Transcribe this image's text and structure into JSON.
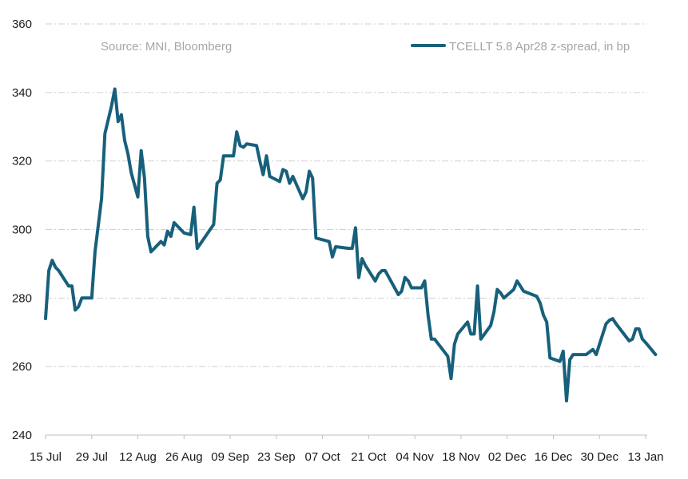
{
  "chart_data": {
    "type": "line",
    "title": "",
    "xlabel": "",
    "ylabel": "",
    "annotation": "Source: MNI, Bloomberg",
    "legend_position": "top-right",
    "ylim": [
      240,
      360
    ],
    "yticks": [
      240,
      260,
      280,
      300,
      320,
      340,
      360
    ],
    "grid": true,
    "x_range_days": [
      0,
      182
    ],
    "xticks": [
      {
        "day": 0,
        "label": "15 Jul"
      },
      {
        "day": 14,
        "label": "29 Jul"
      },
      {
        "day": 28,
        "label": "12 Aug"
      },
      {
        "day": 42,
        "label": "26 Aug"
      },
      {
        "day": 56,
        "label": "09 Sep"
      },
      {
        "day": 70,
        "label": "23 Sep"
      },
      {
        "day": 84,
        "label": "07 Oct"
      },
      {
        "day": 98,
        "label": "21 Oct"
      },
      {
        "day": 112,
        "label": "04 Nov"
      },
      {
        "day": 126,
        "label": "18 Nov"
      },
      {
        "day": 140,
        "label": "02 Dec"
      },
      {
        "day": 154,
        "label": "16 Dec"
      },
      {
        "day": 168,
        "label": "30 Dec"
      },
      {
        "day": 182,
        "label": "13 Jan"
      }
    ],
    "series": [
      {
        "name": "TCELLT 5.8 Apr28 z-spread, in bp",
        "color": "#17607c",
        "points": [
          [
            0,
            274
          ],
          [
            1,
            288
          ],
          [
            2,
            291
          ],
          [
            3,
            289
          ],
          [
            4,
            288
          ],
          [
            7,
            283.5
          ],
          [
            8,
            283.5
          ],
          [
            9,
            276.5
          ],
          [
            10,
            277.5
          ],
          [
            11,
            280
          ],
          [
            14,
            280
          ],
          [
            15,
            293.5
          ],
          [
            17,
            309
          ],
          [
            18,
            328
          ],
          [
            20,
            336
          ],
          [
            21,
            341
          ],
          [
            22,
            331.5
          ],
          [
            23,
            333.5
          ],
          [
            24,
            326
          ],
          [
            25,
            322
          ],
          [
            26,
            316.5
          ],
          [
            28,
            309.5
          ],
          [
            29,
            323
          ],
          [
            30,
            315
          ],
          [
            31,
            298
          ],
          [
            32,
            293.5
          ],
          [
            35,
            296.5
          ],
          [
            36,
            295.5
          ],
          [
            37,
            299.5
          ],
          [
            38,
            298
          ],
          [
            39,
            302
          ],
          [
            42,
            299
          ],
          [
            44,
            298.5
          ],
          [
            45,
            306.5
          ],
          [
            46,
            294.5
          ],
          [
            51,
            301.5
          ],
          [
            52,
            313.5
          ],
          [
            53,
            314.5
          ],
          [
            54,
            321.5
          ],
          [
            57,
            321.5
          ],
          [
            58,
            328.5
          ],
          [
            59,
            324.5
          ],
          [
            60,
            324
          ],
          [
            61,
            325
          ],
          [
            64,
            324.5
          ],
          [
            65,
            320
          ],
          [
            66,
            316
          ],
          [
            67,
            321.5
          ],
          [
            68,
            315.5
          ],
          [
            71,
            314
          ],
          [
            72,
            317.5
          ],
          [
            73,
            317
          ],
          [
            74,
            313.5
          ],
          [
            75,
            315.5
          ],
          [
            78,
            309
          ],
          [
            79,
            311
          ],
          [
            80,
            317
          ],
          [
            81,
            315
          ],
          [
            82,
            297.5
          ],
          [
            86,
            296.5
          ],
          [
            87,
            292
          ],
          [
            88,
            295
          ],
          [
            92,
            294.5
          ],
          [
            93,
            294.5
          ],
          [
            94,
            300.5
          ],
          [
            95,
            286
          ],
          [
            96,
            291.5
          ],
          [
            97,
            289.5
          ],
          [
            100,
            285
          ],
          [
            101,
            287
          ],
          [
            102,
            288
          ],
          [
            103,
            288
          ],
          [
            107,
            281
          ],
          [
            108,
            282
          ],
          [
            109,
            286
          ],
          [
            110,
            285
          ],
          [
            111,
            283
          ],
          [
            114,
            283
          ],
          [
            115,
            285
          ],
          [
            116,
            275
          ],
          [
            117,
            268
          ],
          [
            118,
            268
          ],
          [
            122,
            263
          ],
          [
            123,
            256.5
          ],
          [
            124,
            266.5
          ],
          [
            125,
            269.5
          ],
          [
            128,
            273
          ],
          [
            129,
            269.5
          ],
          [
            130,
            269.5
          ],
          [
            131,
            283.5
          ],
          [
            132,
            268
          ],
          [
            135,
            272
          ],
          [
            136,
            276
          ],
          [
            137,
            282.5
          ],
          [
            138,
            281.5
          ],
          [
            139,
            280
          ],
          [
            142,
            282.5
          ],
          [
            143,
            285
          ],
          [
            144,
            283.5
          ],
          [
            145,
            282
          ],
          [
            149,
            280.5
          ],
          [
            150,
            278.5
          ],
          [
            151,
            275
          ],
          [
            152,
            273
          ],
          [
            153,
            262.5
          ],
          [
            156,
            261.5
          ],
          [
            157,
            264.5
          ],
          [
            158,
            250
          ],
          [
            159,
            262
          ],
          [
            160,
            263.5
          ],
          [
            163,
            263.5
          ],
          [
            164,
            263.5
          ],
          [
            166,
            265
          ],
          [
            167,
            263.5
          ],
          [
            170,
            272.5
          ],
          [
            171,
            273.5
          ],
          [
            172,
            274
          ],
          [
            173,
            272.5
          ],
          [
            177,
            267.5
          ],
          [
            178,
            268
          ],
          [
            179,
            271
          ],
          [
            180,
            271
          ],
          [
            181,
            268
          ],
          [
            182,
            267
          ],
          [
            185,
            263.5
          ]
        ]
      }
    ]
  }
}
